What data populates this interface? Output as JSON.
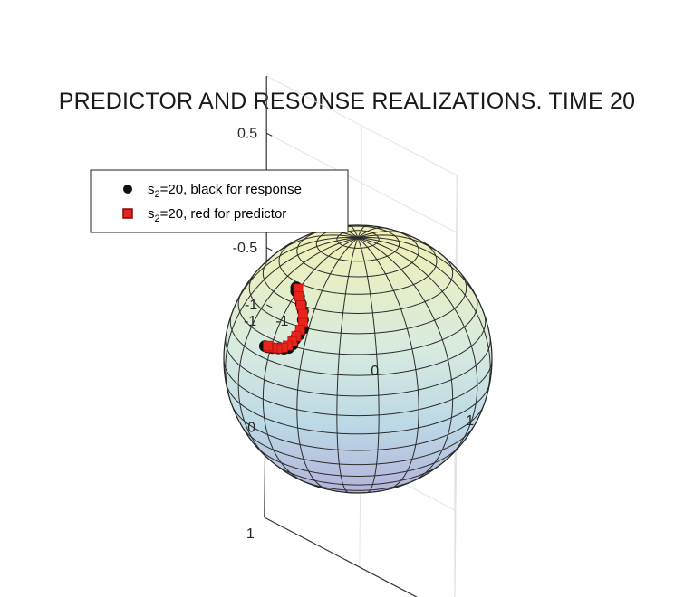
{
  "chart_data": {
    "type": "scatter",
    "title": "PREDICTOR AND RESONSE REALIZATIONS. TIME 20",
    "xlabel": "",
    "ylabel": "",
    "zlabel": "",
    "xlim": [
      -1,
      1
    ],
    "ylim": [
      -1,
      1
    ],
    "zlim": [
      -1,
      1
    ],
    "x_ticks": [
      "-1",
      "0",
      "1"
    ],
    "y_ticks": [
      "-1",
      "0",
      "1"
    ],
    "z_ticks": [
      "-1",
      "-0.5",
      "0",
      "0.5"
    ],
    "grid": true,
    "surface": "unit sphere",
    "legend_position": "top-left",
    "legend": [
      {
        "prefix": "s",
        "sub": "2",
        "text": "=20, black for response",
        "marker": "circle",
        "color": "#111111"
      },
      {
        "prefix": "s",
        "sub": "2",
        "text": "=20, red for predictor",
        "marker": "square",
        "color": "#e8231c"
      }
    ],
    "series": [
      {
        "name": "s2=20, black for response",
        "color": "#111111",
        "marker": "circle",
        "points": [
          [
            0.58,
            -0.07,
            0.76
          ],
          [
            0.6,
            -0.05,
            0.74
          ],
          [
            0.62,
            0.0,
            0.72
          ],
          [
            0.64,
            0.04,
            0.68
          ],
          [
            0.66,
            0.08,
            0.64
          ],
          [
            0.68,
            0.1,
            0.58
          ],
          [
            0.7,
            0.12,
            0.52
          ],
          [
            0.7,
            0.08,
            0.46
          ],
          [
            0.7,
            0.04,
            0.41
          ],
          [
            0.71,
            0.02,
            0.36
          ],
          [
            0.71,
            -0.02,
            0.32
          ],
          [
            0.7,
            -0.08,
            0.29
          ],
          [
            0.68,
            -0.16,
            0.26
          ],
          [
            0.66,
            -0.24,
            0.23
          ],
          [
            0.63,
            -0.32,
            0.2
          ],
          [
            0.6,
            -0.38,
            0.18
          ]
        ]
      },
      {
        "name": "s2=20, red for predictor",
        "color": "#e8231c",
        "marker": "square",
        "points": [
          [
            0.57,
            -0.06,
            0.75
          ],
          [
            0.6,
            -0.02,
            0.71
          ],
          [
            0.63,
            0.03,
            0.66
          ],
          [
            0.65,
            0.07,
            0.61
          ],
          [
            0.67,
            0.09,
            0.55
          ],
          [
            0.68,
            0.07,
            0.49
          ],
          [
            0.69,
            0.04,
            0.43
          ],
          [
            0.7,
            0.01,
            0.38
          ],
          [
            0.7,
            -0.04,
            0.33
          ],
          [
            0.69,
            -0.1,
            0.29
          ],
          [
            0.67,
            -0.18,
            0.25
          ],
          [
            0.64,
            -0.26,
            0.22
          ],
          [
            0.61,
            -0.33,
            0.19
          ],
          [
            0.58,
            -0.37,
            0.18
          ]
        ]
      }
    ]
  }
}
